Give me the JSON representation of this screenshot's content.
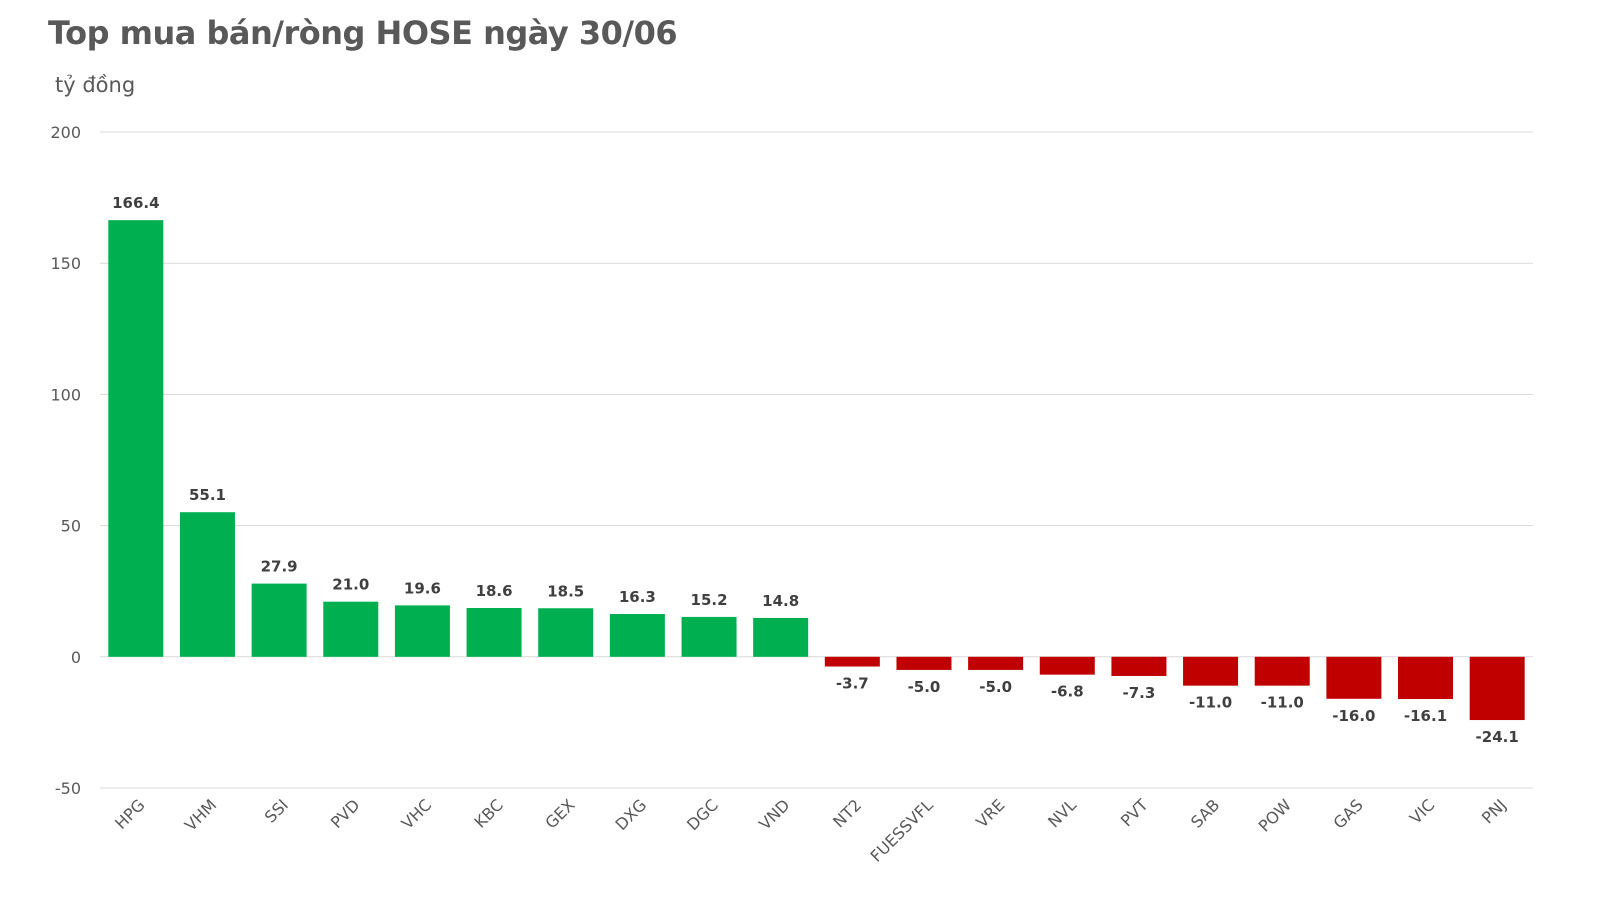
{
  "chart_data": {
    "type": "bar",
    "title": "Top mua bán/ròng HOSE ngày 30/06",
    "ylabel": "tỷ đồng",
    "xlabel": "",
    "ylim": [
      -50,
      200
    ],
    "yticks": [
      -50,
      0,
      50,
      100,
      150,
      200
    ],
    "grid": true,
    "categories": [
      "HPG",
      "VHM",
      "SSI",
      "PVD",
      "VHC",
      "KBC",
      "GEX",
      "DXG",
      "DGC",
      "VND",
      "NT2",
      "FUESSVFL",
      "VRE",
      "NVL",
      "PVT",
      "SAB",
      "POW",
      "GAS",
      "VIC",
      "PNJ"
    ],
    "values": [
      166.4,
      55.1,
      27.9,
      21.0,
      19.6,
      18.6,
      18.5,
      16.3,
      15.2,
      14.8,
      -3.7,
      -5.0,
      -5.0,
      -6.8,
      -7.3,
      -11.0,
      -11.0,
      -16.0,
      -16.1,
      -24.1
    ],
    "colors": {
      "positive": "#00B050",
      "negative": "#C00000"
    }
  }
}
